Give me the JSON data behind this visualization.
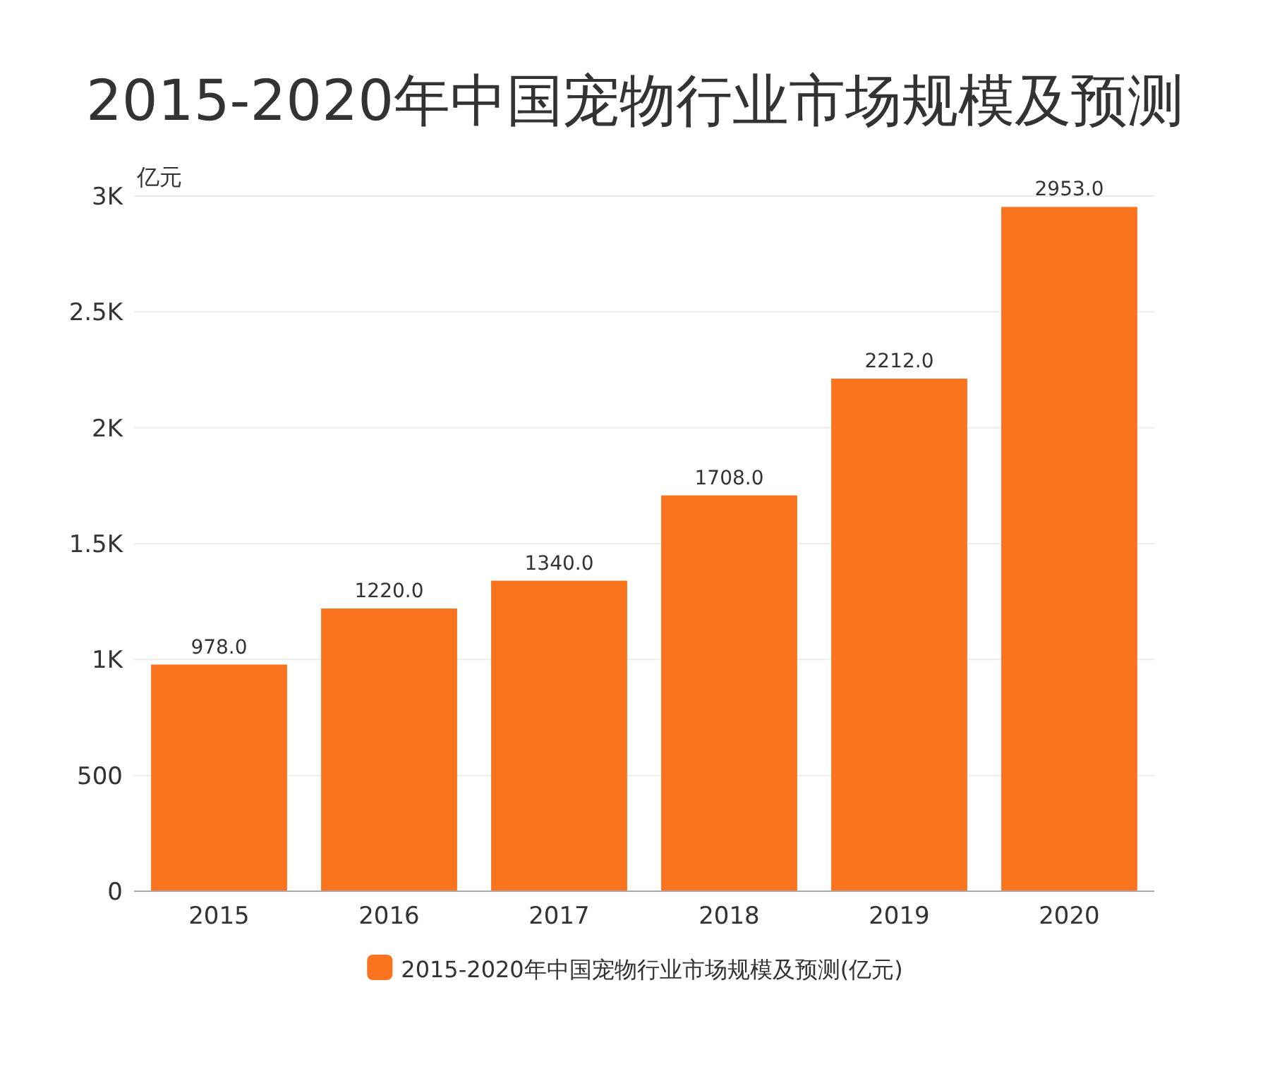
{
  "chart_data": {
    "type": "bar",
    "title": "2015-2020年中国宠物行业市场规模及预测",
    "ylabel": "亿元",
    "categories": [
      "2015",
      "2016",
      "2017",
      "2018",
      "2019",
      "2020"
    ],
    "series": [
      {
        "name": "2015-2020年中国宠物行业市场规模及预测(亿元)",
        "color": "#fa731e",
        "values": [
          978,
          1220,
          1340,
          1708,
          2212,
          2953
        ],
        "value_labels": [
          "978.0",
          "1220.0",
          "1340.0",
          "1708.0",
          "2212.0",
          "2953.0"
        ]
      }
    ],
    "ylim": [
      0,
      3000
    ],
    "yticks": [
      0,
      500,
      {
        "value": 1000,
        "label": "1K"
      },
      {
        "value": 1500,
        "label": "1.5K"
      },
      {
        "value": 2000,
        "label": "2K"
      },
      {
        "value": 2500,
        "label": "2.5K"
      },
      {
        "value": 3000,
        "label": "3K"
      }
    ],
    "grid": "y",
    "legend": "bottom"
  }
}
